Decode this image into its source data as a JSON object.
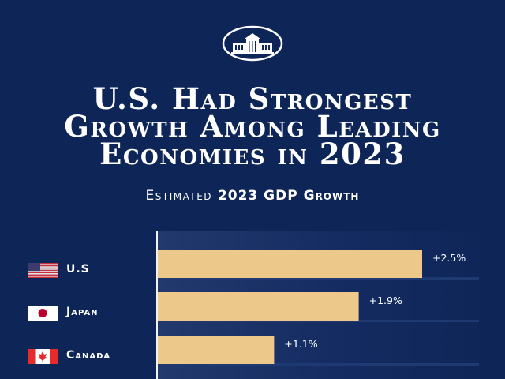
{
  "logo": {
    "icon": "white-house-seal-icon"
  },
  "title_lines": [
    "U.S. Had Strongest",
    "Growth Among Leading",
    "Economies in 2023"
  ],
  "subtitle": {
    "light": "Estimated",
    "bold": "2023 GDP Growth"
  },
  "colors": {
    "background": "#0e2557",
    "bar": "#ecc98a",
    "text": "#ffffff"
  },
  "chart_data": {
    "type": "bar",
    "orientation": "horizontal",
    "title": "U.S. Had Strongest Growth Among Leading Economies in 2023",
    "subtitle": "Estimated 2023 GDP Growth",
    "categories": [
      "U.S",
      "Japan",
      "Canada"
    ],
    "values": [
      2.5,
      1.9,
      1.1
    ],
    "data_labels": [
      "+2.5%",
      "+1.9%",
      "+1.1%"
    ],
    "flags": [
      "us-flag-icon",
      "japan-flag-icon",
      "canada-flag-icon"
    ],
    "xlim": [
      0,
      3.0
    ],
    "grid": false
  }
}
